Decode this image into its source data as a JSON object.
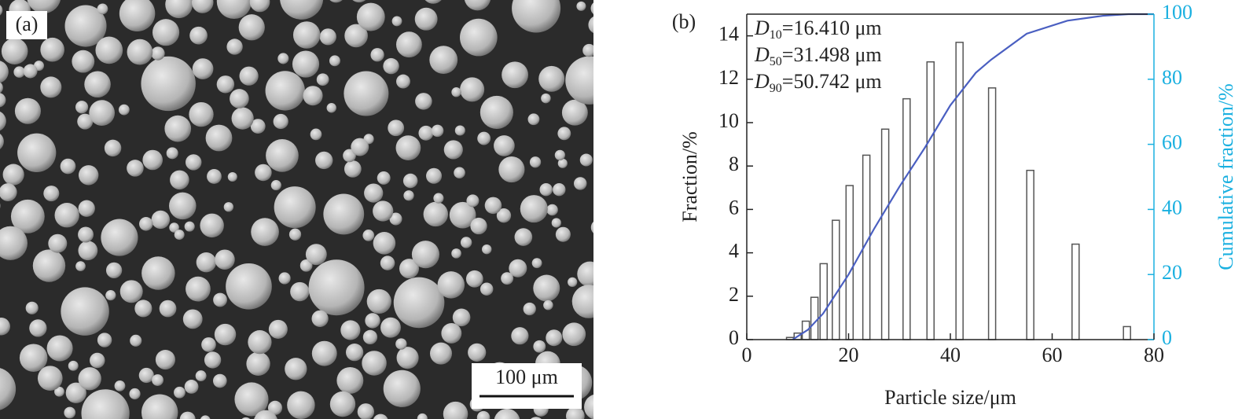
{
  "panel_a": {
    "label": "(a)",
    "scale_bar": "100 μm"
  },
  "chart_data": {
    "type": "bar",
    "label": "(b)",
    "xlabel": "Particle size/μm",
    "ylabel": "Fraction/%",
    "y2label": "Cumulative fraction/%",
    "annotations": [
      {
        "symbol": "D",
        "subscript": "10",
        "text": "=16.410 μm"
      },
      {
        "symbol": "D",
        "subscript": "50",
        "text": "=31.498 μm"
      },
      {
        "symbol": "D",
        "subscript": "90",
        "text": "=50.742 μm"
      }
    ],
    "xlim": [
      0,
      80
    ],
    "xticks": [
      0,
      20,
      40,
      60,
      80
    ],
    "ylim": [
      0,
      15
    ],
    "yticks": [
      0,
      2,
      4,
      6,
      8,
      10,
      12,
      14
    ],
    "y2lim": [
      0,
      100
    ],
    "y2ticks": [
      0,
      20,
      40,
      60,
      80,
      100
    ],
    "y2color": "#1ab0e0",
    "series": [
      {
        "type": "bar",
        "color": "#555555",
        "x": [
          8.5,
          10,
          11.6,
          13.3,
          15.1,
          17.5,
          20.2,
          23.5,
          27.2,
          31.4,
          36.1,
          41.8,
          48.2,
          55.7,
          64.6,
          74.7
        ],
        "values": [
          0.1,
          0.3,
          0.85,
          1.95,
          3.5,
          5.5,
          7.1,
          8.5,
          9.7,
          11.1,
          12.8,
          13.7,
          11.6,
          7.8,
          4.4,
          0.6
        ]
      },
      {
        "type": "line",
        "axis": "y2",
        "color": "#4a5fc1",
        "x": [
          9,
          12,
          15,
          20,
          25,
          30,
          35,
          40,
          45,
          48,
          55,
          63,
          70,
          75,
          80
        ],
        "values": [
          0,
          3,
          8,
          20,
          34,
          47,
          59,
          72,
          82,
          86,
          94,
          98,
          99.5,
          100,
          100
        ]
      }
    ]
  }
}
